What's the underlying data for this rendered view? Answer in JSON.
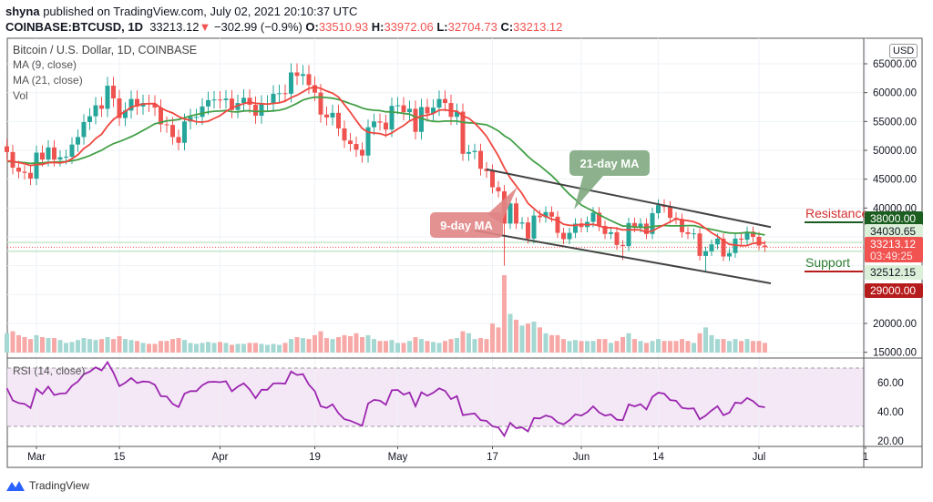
{
  "header": {
    "publisher": "shyna",
    "published_text": "published on TradingView.com, July 02, 2021 20:10:37 UTC",
    "symbol": "COINBASE:BTCUSD, 1D",
    "last": "33213.12",
    "change": "−302.99 (−0.9%)",
    "o_label": "O:",
    "o": "33510.93",
    "h_label": "H:",
    "h": "33972.06",
    "l_label": "L:",
    "l": "32704.73",
    "c_label": "C:",
    "c": "33213.12"
  },
  "legend": {
    "title": "Bitcoin / U.S. Dollar, 1D, COINBASE",
    "ma9": "MA (9, close)",
    "ma21": "MA (21, close)",
    "vol": "Vol",
    "rsi": "RSI (14, close)"
  },
  "currency": "USD",
  "logo_text": "TradingView",
  "colors": {
    "up": "#26a69a",
    "down": "#ef5350",
    "ma9": "#f0473f",
    "ma21": "#43a047",
    "rsi": "#9c27b0",
    "resistance": "#1b5e20",
    "support": "#b71c1c"
  },
  "chart_data": {
    "type": "candlestick",
    "title": "Bitcoin / U.S. Dollar, 1D, COINBASE",
    "start_date": "2021-02-24",
    "closes": [
      49700,
      47000,
      46300,
      46100,
      45100,
      49600,
      48400,
      50500,
      48400,
      48800,
      48900,
      51000,
      52300,
      54900,
      55900,
      57800,
      57200,
      61200,
      59000,
      55600,
      56900,
      58900,
      57600,
      58200,
      58100,
      57400,
      54500,
      54400,
      52300,
      51300,
      55000,
      55800,
      55800,
      57600,
      58700,
      58800,
      58700,
      58970,
      57000,
      58200,
      59100,
      57900,
      56000,
      58100,
      58100,
      59800,
      59900,
      59800,
      63500,
      62900,
      63200,
      61300,
      60000,
      56200,
      55700,
      56500,
      53800,
      51700,
      51100,
      50100,
      49100,
      54000,
      55000,
      54800,
      53600,
      57700,
      57800,
      56600,
      57200,
      53200,
      57500,
      56400,
      57400,
      58900,
      58200,
      55800,
      56700,
      49400,
      49700,
      49900,
      46800,
      46400,
      43600,
      42900,
      37300,
      40800,
      37300,
      37500,
      34700,
      38700,
      38400,
      39300,
      38500,
      35700,
      34600,
      35700,
      37300,
      36700,
      37600,
      39200,
      36900,
      35500,
      35800,
      33600,
      33400,
      37400,
      36700,
      37300,
      35500,
      39100,
      40500,
      40200,
      38300,
      38100,
      35800,
      35500,
      35600,
      31700,
      32500,
      33700,
      34700,
      31600,
      32200,
      34700,
      34500,
      35900,
      35000,
      33500,
      33213.12
    ],
    "low_overrides": {
      "2021-05-19": 30000,
      "2021-06-22": 28800,
      "2021-06-08": 31000
    },
    "volume": [
      20,
      22,
      18,
      16,
      14,
      18,
      16,
      15,
      15,
      13,
      10,
      11,
      13,
      15,
      14,
      13,
      14,
      16,
      14,
      17,
      14,
      13,
      12,
      10,
      9,
      9,
      12,
      12,
      14,
      15,
      13,
      10,
      9,
      10,
      11,
      10,
      11,
      10,
      8,
      9,
      9,
      10,
      10,
      9,
      8,
      9,
      8,
      10,
      14,
      16,
      15,
      14,
      18,
      22,
      15,
      14,
      16,
      18,
      17,
      20,
      16,
      18,
      14,
      12,
      12,
      13,
      10,
      10,
      12,
      16,
      14,
      12,
      11,
      10,
      12,
      14,
      15,
      22,
      20,
      14,
      15,
      14,
      30,
      26,
      80,
      40,
      34,
      28,
      30,
      32,
      26,
      20,
      18,
      18,
      14,
      12,
      13,
      12,
      12,
      12,
      14,
      14,
      10,
      12,
      16,
      20,
      14,
      12,
      10,
      12,
      14,
      12,
      12,
      12,
      14,
      12,
      10,
      20,
      26,
      18,
      14,
      14,
      12,
      14,
      12,
      14,
      12,
      12,
      10
    ],
    "ma_periods": [
      9,
      21
    ],
    "rsi_period": 14,
    "y_ticks": [
      "65000.00",
      "60000.00",
      "55000.00",
      "50000.00",
      "45000.00",
      "40000.00",
      "20000.00",
      "15000.00"
    ],
    "y_tick_values": [
      65000,
      60000,
      55000,
      50000,
      45000,
      40000,
      20000,
      15000
    ],
    "rsi_ticks": [
      "60.00",
      "40.00",
      "20.00"
    ],
    "rsi_tick_values": [
      60,
      40,
      20
    ],
    "rsi_band": [
      30,
      70
    ],
    "x_ticks": [
      {
        "label": "Mar",
        "date": "2021-03-01"
      },
      {
        "label": "15",
        "date": "2021-03-15"
      },
      {
        "label": "Apr",
        "date": "2021-04-01"
      },
      {
        "label": "19",
        "date": "2021-04-17"
      },
      {
        "label": "May",
        "date": "2021-05-01"
      },
      {
        "label": "17",
        "date": "2021-05-17"
      },
      {
        "label": "Jun",
        "date": "2021-06-01"
      },
      {
        "label": "14",
        "date": "2021-06-14"
      },
      {
        "label": "Jul",
        "date": "2021-07-01"
      },
      {
        "label": "1",
        "date": "2021-07-19"
      }
    ],
    "price_tags": [
      {
        "label": "38000.00",
        "value": 38000,
        "style": "resistance"
      },
      {
        "label": "34030.65",
        "value": 34030.65,
        "style": "ma"
      },
      {
        "label": "33213.12",
        "sub": "03:49:25",
        "value": 33213.12,
        "style": "last"
      },
      {
        "label": "32512.15",
        "value": 32512.15,
        "style": "ma"
      },
      {
        "label": "29000.00",
        "value": 29000,
        "style": "support"
      }
    ],
    "levels": {
      "resistance": {
        "label": "Resistance",
        "value": 38000
      },
      "support": {
        "label": "Support",
        "value": 29000
      }
    },
    "channel": {
      "upper": [
        {
          "date": "2021-05-16",
          "price": 46700
        },
        {
          "date": "2021-07-03",
          "price": 36700
        }
      ],
      "lower": [
        {
          "date": "2021-05-14",
          "price": 36100
        },
        {
          "date": "2021-07-03",
          "price": 26950
        }
      ]
    },
    "annotations": {
      "ma21": "21-day MA",
      "ma9": "9-day MA"
    }
  }
}
